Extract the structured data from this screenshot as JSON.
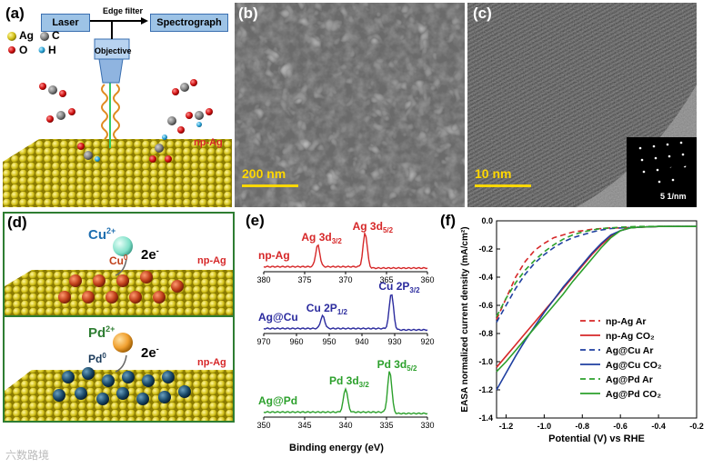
{
  "panel_a": {
    "label": "(a)",
    "laser": "Laser",
    "edge_filter": "Edge filter",
    "spectrograph": "Spectrograph",
    "objective": "Objective",
    "legend": {
      "ag": "Ag",
      "c": "C",
      "o": "O",
      "h": "H"
    },
    "surface_label": "np-Ag"
  },
  "panel_b": {
    "label": "(b)",
    "scale": "200 nm"
  },
  "panel_c": {
    "label": "(c)",
    "scale": "10 nm",
    "inset_scale": "5 1/nm"
  },
  "panel_d": {
    "label": "(d)",
    "cu_ion": "Cu",
    "cu_charge": "2+",
    "electrons": "2e",
    "electrons_sup": "-",
    "cu_metal": "Cu",
    "cu_metal_sup": "0",
    "surface_top": "np-Ag",
    "pd_ion": "Pd",
    "pd_charge": "2+",
    "pd_metal": "Pd",
    "pd_metal_sup": "0",
    "surface_bottom": "np-Ag"
  },
  "panel_e": {
    "label": "(e)",
    "xlabel": "Binding energy (eV)",
    "spectra": [
      {
        "name": "np-Ag",
        "peak1": "Ag 3d",
        "peak1_sub": "3/2",
        "peak2": "Ag 3d",
        "peak2_sub": "5/2",
        "ticks": [
          "380",
          "375",
          "370",
          "365",
          "360"
        ],
        "color": "#d62728"
      },
      {
        "name": "Ag@Cu",
        "peak1": "Cu 2P",
        "peak1_sub": "1/2",
        "peak2": "Cu 2P",
        "peak2_sub": "3/2",
        "ticks": [
          "970",
          "960",
          "950",
          "940",
          "930",
          "920"
        ],
        "color": "#2b2b9e"
      },
      {
        "name": "Ag@Pd",
        "peak1": "Pd 3d",
        "peak1_sub": "3/2",
        "peak2": "Pd 3d",
        "peak2_sub": "5/2",
        "ticks": [
          "350",
          "345",
          "340",
          "335",
          "330"
        ],
        "color": "#2ca02c"
      }
    ]
  },
  "panel_f": {
    "label": "(f)"
  },
  "chart_data": {
    "type": "line",
    "xlabel": "Potential (V) vs RHE",
    "ylabel": "EASA normalized current density (mA/cm²)",
    "xlim": [
      -1.25,
      -0.2
    ],
    "ylim": [
      -1.4,
      0.0
    ],
    "xticks": [
      "-1.2",
      "-1.0",
      "-0.8",
      "-0.6",
      "-0.4",
      "-0.2"
    ],
    "yticks": [
      "0.0",
      "-0.2",
      "-0.4",
      "-0.6",
      "-0.8",
      "-1.0",
      "-1.2",
      "-1.4"
    ],
    "legend_position": "bottom-right",
    "series": [
      {
        "name": "np-Ag Ar",
        "color": "#d62728",
        "dash": true,
        "x": [
          -1.25,
          -1.2,
          -1.15,
          -1.1,
          -1.05,
          -1.0,
          -0.95,
          -0.9,
          -0.85,
          -0.8,
          -0.75,
          -0.7,
          -0.65,
          -0.6,
          -0.5,
          -0.4,
          -0.3,
          -0.2
        ],
        "y": [
          -0.7,
          -0.55,
          -0.4,
          -0.29,
          -0.21,
          -0.16,
          -0.12,
          -0.1,
          -0.08,
          -0.07,
          -0.06,
          -0.055,
          -0.05,
          -0.05,
          -0.045,
          -0.04,
          -0.04,
          -0.04
        ]
      },
      {
        "name": "np-Ag CO₂",
        "color": "#d62728",
        "dash": false,
        "x": [
          -1.25,
          -1.2,
          -1.15,
          -1.1,
          -1.05,
          -1.0,
          -0.95,
          -0.9,
          -0.85,
          -0.8,
          -0.75,
          -0.7,
          -0.65,
          -0.6,
          -0.55,
          -0.5,
          -0.4,
          -0.3,
          -0.2
        ],
        "y": [
          -1.04,
          -0.96,
          -0.88,
          -0.8,
          -0.72,
          -0.64,
          -0.56,
          -0.48,
          -0.4,
          -0.32,
          -0.24,
          -0.17,
          -0.11,
          -0.07,
          -0.05,
          -0.045,
          -0.04,
          -0.04,
          -0.04
        ]
      },
      {
        "name": "Ag@Cu Ar",
        "color": "#1f3fa0",
        "dash": true,
        "x": [
          -1.25,
          -1.2,
          -1.15,
          -1.1,
          -1.05,
          -1.0,
          -0.95,
          -0.9,
          -0.85,
          -0.8,
          -0.75,
          -0.7,
          -0.65,
          -0.6,
          -0.5,
          -0.4,
          -0.3,
          -0.2
        ],
        "y": [
          -0.72,
          -0.6,
          -0.48,
          -0.38,
          -0.3,
          -0.24,
          -0.19,
          -0.15,
          -0.12,
          -0.1,
          -0.08,
          -0.065,
          -0.055,
          -0.05,
          -0.045,
          -0.04,
          -0.04,
          -0.04
        ]
      },
      {
        "name": "Ag@Cu CO₂",
        "color": "#1f3fa0",
        "dash": false,
        "x": [
          -1.25,
          -1.2,
          -1.15,
          -1.1,
          -1.05,
          -1.0,
          -0.95,
          -0.9,
          -0.85,
          -0.8,
          -0.75,
          -0.7,
          -0.65,
          -0.6,
          -0.55,
          -0.5,
          -0.4,
          -0.3,
          -0.2
        ],
        "y": [
          -1.2,
          -1.08,
          -0.96,
          -0.85,
          -0.75,
          -0.65,
          -0.56,
          -0.47,
          -0.39,
          -0.31,
          -0.23,
          -0.16,
          -0.1,
          -0.07,
          -0.05,
          -0.045,
          -0.04,
          -0.04,
          -0.04
        ]
      },
      {
        "name": "Ag@Pd Ar",
        "color": "#2ca02c",
        "dash": true,
        "x": [
          -1.25,
          -1.2,
          -1.15,
          -1.1,
          -1.05,
          -1.0,
          -0.95,
          -0.9,
          -0.85,
          -0.8,
          -0.75,
          -0.7,
          -0.65,
          -0.6,
          -0.5,
          -0.4,
          -0.3,
          -0.2
        ],
        "y": [
          -0.68,
          -0.55,
          -0.44,
          -0.35,
          -0.28,
          -0.22,
          -0.17,
          -0.13,
          -0.1,
          -0.08,
          -0.065,
          -0.055,
          -0.05,
          -0.045,
          -0.04,
          -0.04,
          -0.04,
          -0.04
        ]
      },
      {
        "name": "Ag@Pd CO₂",
        "color": "#2ca02c",
        "dash": false,
        "x": [
          -1.25,
          -1.2,
          -1.15,
          -1.1,
          -1.05,
          -1.0,
          -0.95,
          -0.9,
          -0.85,
          -0.8,
          -0.75,
          -0.7,
          -0.65,
          -0.6,
          -0.55,
          -0.5,
          -0.4,
          -0.3,
          -0.2
        ],
        "y": [
          -1.07,
          -1.0,
          -0.92,
          -0.84,
          -0.76,
          -0.68,
          -0.6,
          -0.52,
          -0.43,
          -0.35,
          -0.27,
          -0.19,
          -0.12,
          -0.07,
          -0.05,
          -0.045,
          -0.04,
          -0.04,
          -0.04
        ]
      }
    ]
  },
  "watermark": "六数路境"
}
